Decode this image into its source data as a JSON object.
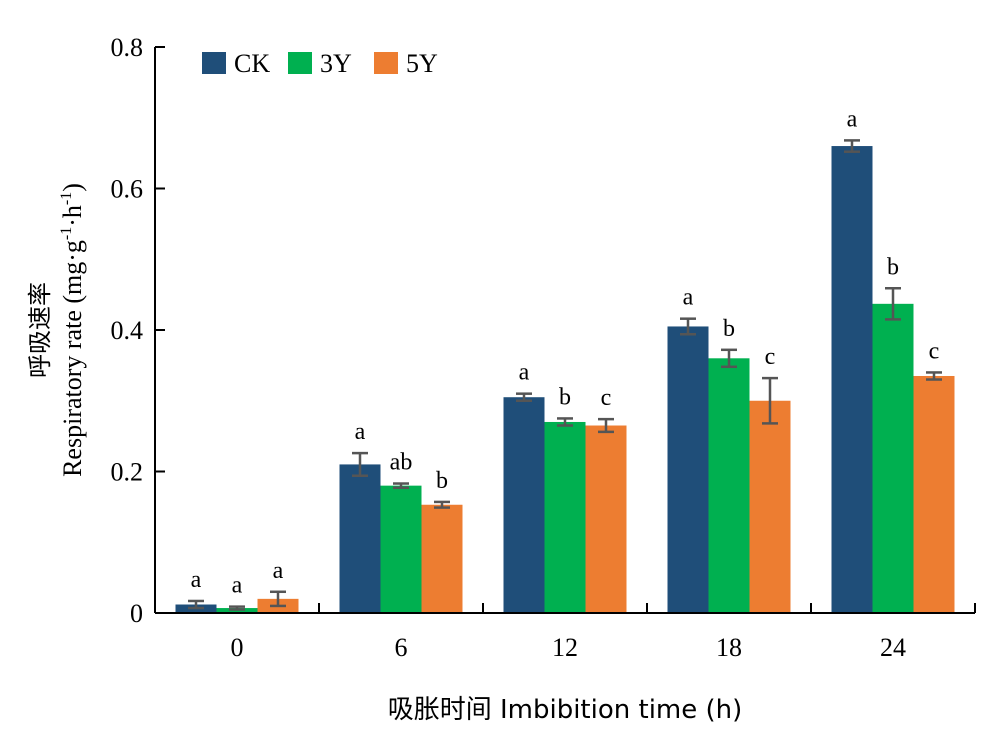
{
  "chart_data": {
    "type": "bar",
    "title": "",
    "xlabel": "吸胀时间 Imbibition time (h)",
    "ylabel_cn": "呼吸速率",
    "ylabel": "Respiratory rate (mg·g-1·h-1)",
    "ylabel_parts": [
      "Respiratory rate (mg·g",
      "-1",
      "·h",
      "-1",
      ")"
    ],
    "ylim": [
      0,
      0.8
    ],
    "yticks": [
      "0",
      "0.2",
      "0.4",
      "0.6",
      "0.8"
    ],
    "categories": [
      "0",
      "6",
      "12",
      "18",
      "24"
    ],
    "legend_position": "top-left",
    "grid": false,
    "series": [
      {
        "name": "CK",
        "color": "#1f4e79",
        "values": [
          0.012,
          0.21,
          0.305,
          0.405,
          0.66
        ],
        "errors": [
          0.005,
          0.016,
          0.005,
          0.011,
          0.008
        ],
        "letters": [
          "a",
          "a",
          "a",
          "a",
          "a"
        ]
      },
      {
        "name": "3Y",
        "color": "#00b050",
        "values": [
          0.007,
          0.18,
          0.27,
          0.36,
          0.437
        ],
        "errors": [
          0.002,
          0.003,
          0.005,
          0.012,
          0.022
        ],
        "letters": [
          "a",
          "ab",
          "b",
          "b",
          "b"
        ]
      },
      {
        "name": "5Y",
        "color": "#ed7d31",
        "values": [
          0.02,
          0.153,
          0.265,
          0.3,
          0.335
        ],
        "errors": [
          0.01,
          0.004,
          0.009,
          0.032,
          0.005
        ],
        "letters": [
          "a",
          "b",
          "c",
          "c",
          "c"
        ]
      }
    ]
  }
}
